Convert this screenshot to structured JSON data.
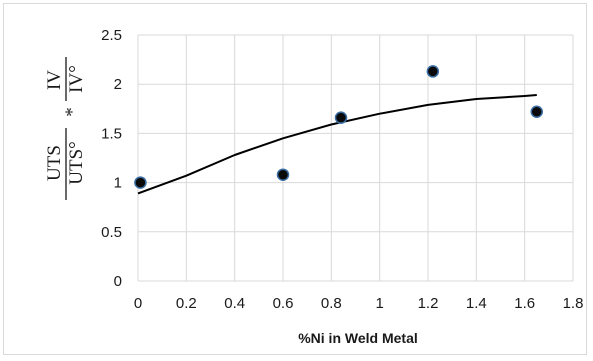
{
  "chart_data": {
    "type": "scatter",
    "xlabel": "%Ni in Weld Metal",
    "ylabel": {
      "left_numerator": "UTS",
      "left_denominator": "UTS°",
      "operator": "*",
      "right_numerator": "IV",
      "right_denominator": "IV°"
    },
    "xlim": [
      0,
      1.8
    ],
    "ylim": [
      0,
      2.5
    ],
    "x_ticks": [
      "0",
      "0.2",
      "0.4",
      "0.6",
      "0.8",
      "1",
      "1.2",
      "1.4",
      "1.6",
      "1.8"
    ],
    "y_ticks": [
      "0",
      "0.5",
      "1",
      "1.5",
      "2",
      "2.5"
    ],
    "grid": true,
    "points": [
      {
        "x": 0.01,
        "y": 1.0
      },
      {
        "x": 0.6,
        "y": 1.08
      },
      {
        "x": 0.84,
        "y": 1.66
      },
      {
        "x": 1.22,
        "y": 2.13
      },
      {
        "x": 1.65,
        "y": 1.72
      }
    ],
    "trendline": {
      "type": "polynomial",
      "x": [
        0,
        0.2,
        0.4,
        0.6,
        0.8,
        1.0,
        1.2,
        1.4,
        1.6,
        1.65
      ],
      "y": [
        0.89,
        1.07,
        1.28,
        1.45,
        1.59,
        1.7,
        1.79,
        1.85,
        1.88,
        1.89
      ]
    },
    "colors": {
      "marker_fill": "#0a0a0a",
      "marker_edge": "#3a6ea5",
      "trendline": "#000000",
      "grid": "#d9d9d9"
    }
  }
}
